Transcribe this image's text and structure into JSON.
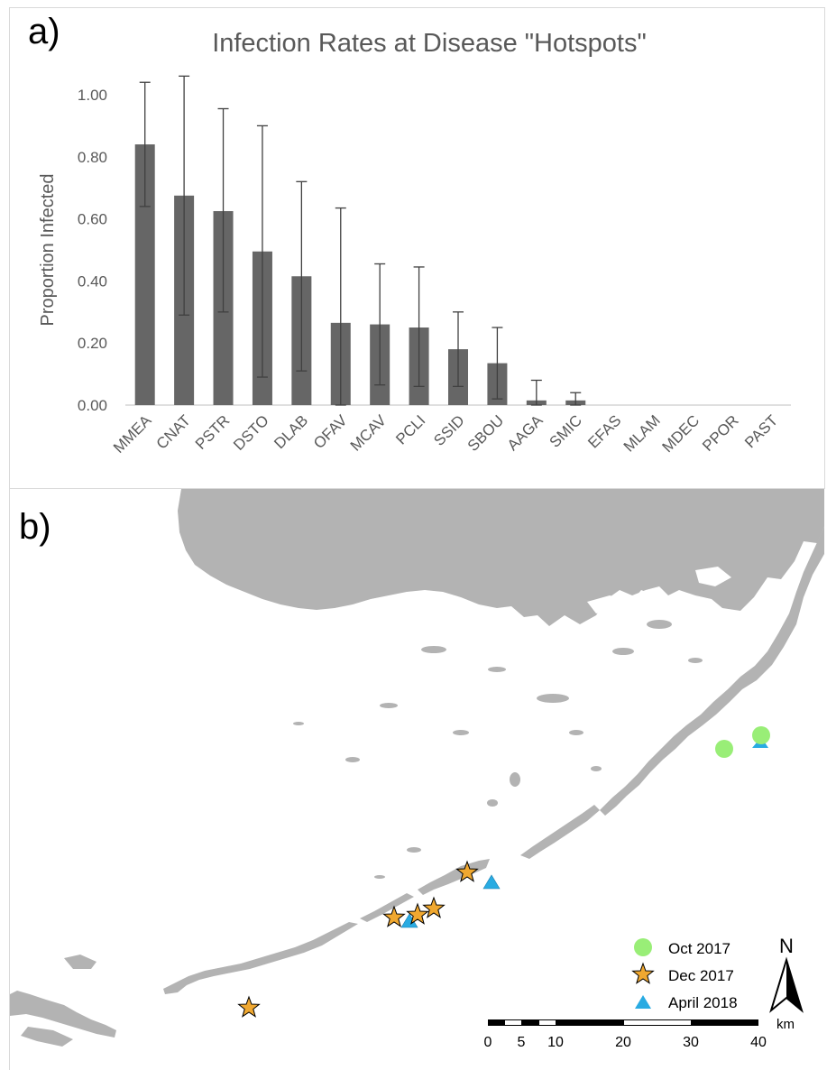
{
  "panel_a": {
    "label": "a)",
    "chart_data": {
      "type": "bar",
      "title": "Infection Rates at Disease \"Hotspots\"",
      "xlabel": "",
      "ylabel": "Proportion Infected",
      "ylim": [
        0,
        1.0
      ],
      "yticks": [
        "0.00",
        "0.20",
        "0.40",
        "0.60",
        "0.80",
        "1.00"
      ],
      "categories": [
        "MMEA",
        "CNAT",
        "PSTR",
        "DSTO",
        "DLAB",
        "OFAV",
        "MCAV",
        "PCLI",
        "SSID",
        "SBOU",
        "AAGA",
        "SMIC",
        "EFAS",
        "MLAM",
        "MDEC",
        "PPOR",
        "PAST"
      ],
      "values": [
        0.84,
        0.675,
        0.625,
        0.495,
        0.415,
        0.265,
        0.26,
        0.25,
        0.18,
        0.135,
        0.015,
        0.015,
        0,
        0,
        0,
        0,
        0
      ],
      "error_upper": [
        1.04,
        1.06,
        0.955,
        0.9,
        0.72,
        0.635,
        0.455,
        0.445,
        0.3,
        0.25,
        0.08,
        0.04,
        null,
        null,
        null,
        null,
        null
      ],
      "error_lower": [
        0.64,
        0.29,
        0.3,
        0.09,
        0.11,
        0,
        0.065,
        0.06,
        0.06,
        0.02,
        0,
        0,
        null,
        null,
        null,
        null,
        null
      ],
      "bar_color": "#666666",
      "grid": false
    }
  },
  "panel_b": {
    "label": "b)",
    "land_color": "#b3b3b3",
    "legend": [
      {
        "label": "Oct 2017",
        "marker": "circle",
        "color": "#99ee77"
      },
      {
        "label": "Dec 2017",
        "marker": "star",
        "color": "#f0a830"
      },
      {
        "label": "April 2018",
        "marker": "triangle",
        "color": "#29abe2"
      }
    ],
    "north_label": "N",
    "scale": {
      "unit": "km",
      "ticks": [
        "0",
        "5",
        "10",
        "20",
        "30",
        "40"
      ]
    }
  }
}
